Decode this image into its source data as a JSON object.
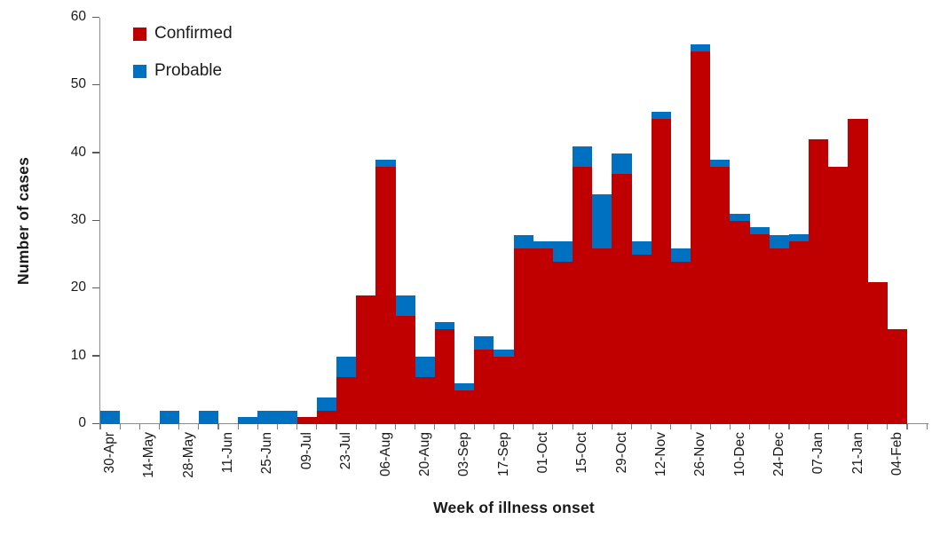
{
  "chart_data": {
    "type": "bar",
    "stacked": true,
    "xlabel": "Week of illness onset",
    "ylabel": "Number of cases",
    "ylim": [
      0,
      60
    ],
    "yticks": [
      0,
      10,
      20,
      30,
      40,
      50,
      60
    ],
    "grid": false,
    "legend_position": "top-left",
    "categories": [
      "30-Apr",
      "07-May",
      "14-May",
      "21-May",
      "28-May",
      "04-Jun",
      "11-Jun",
      "18-Jun",
      "25-Jun",
      "02-Jul",
      "09-Jul",
      "16-Jul",
      "23-Jul",
      "30-Jul",
      "06-Aug",
      "13-Aug",
      "20-Aug",
      "27-Aug",
      "03-Sep",
      "10-Sep",
      "17-Sep",
      "24-Sep",
      "01-Oct",
      "08-Oct",
      "15-Oct",
      "22-Oct",
      "29-Oct",
      "05-Nov",
      "12-Nov",
      "19-Nov",
      "26-Nov",
      "03-Dec",
      "10-Dec",
      "17-Dec",
      "24-Dec",
      "31-Dec",
      "07-Jan",
      "14-Jan",
      "21-Jan",
      "28-Jan",
      "04-Feb"
    ],
    "x_tick_labels": [
      "30-Apr",
      "14-May",
      "28-May",
      "11-Jun",
      "25-Jun",
      "09-Jul",
      "23-Jul",
      "06-Aug",
      "20-Aug",
      "03-Sep",
      "17-Sep",
      "01-Oct",
      "15-Oct",
      "29-Oct",
      "12-Nov",
      "26-Nov",
      "10-Dec",
      "24-Dec",
      "07-Jan",
      "21-Jan",
      "04-Feb"
    ],
    "series": [
      {
        "name": "Confirmed",
        "color": "#C00000",
        "values": [
          0,
          0,
          0,
          0,
          0,
          0,
          0,
          0,
          0,
          0,
          1,
          2,
          7,
          19,
          38,
          16,
          7,
          14,
          5,
          11,
          10,
          26,
          26,
          24,
          38,
          26,
          37,
          25,
          45,
          24,
          55,
          38,
          30,
          28,
          26,
          27,
          42,
          38,
          45,
          21,
          14
        ]
      },
      {
        "name": "Probable",
        "color": "#0070C0",
        "values": [
          2,
          0,
          0,
          2,
          0,
          2,
          0,
          1,
          2,
          2,
          0,
          2,
          3,
          0,
          1,
          3,
          3,
          1,
          1,
          2,
          1,
          2,
          1,
          3,
          3,
          8,
          3,
          2,
          1,
          2,
          1,
          1,
          1,
          1,
          2,
          1,
          0,
          0,
          0,
          0,
          0
        ]
      }
    ]
  },
  "colors": {
    "confirmed": "#C00000",
    "probable": "#0070C0",
    "axis_line": "#8c8c8c",
    "tick": "#7f7f7f",
    "text": "#1a1a1a"
  }
}
